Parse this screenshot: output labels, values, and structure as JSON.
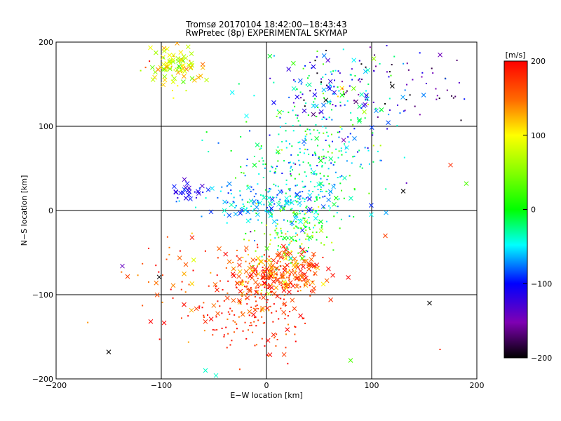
{
  "chart_data": {
    "type": "scatter",
    "title": "Tromsø 20170104 18:42:00−18:43:43",
    "subtitle": "RwPretec (8p) EXPERIMENTAL SKYMAP",
    "xlabel": "E−W location [km]",
    "ylabel": "N−S location [km]",
    "xlim": [
      -200,
      200
    ],
    "ylim": [
      -200,
      200
    ],
    "xticks": [
      -200,
      -100,
      0,
      100,
      200
    ],
    "yticks": [
      -200,
      -100,
      0,
      100,
      200
    ],
    "xtick_labels": [
      "−200",
      "−100",
      "0",
      "100",
      "200"
    ],
    "ytick_labels": [
      "−200",
      "−100",
      "0",
      "100",
      "200"
    ],
    "grid_lines": [
      -100,
      0,
      100
    ],
    "grid": true,
    "colorbar": {
      "title": "[m/s]",
      "min": -200,
      "max": 200,
      "ticks": [
        200,
        100,
        0,
        -100,
        -200
      ],
      "tick_labels": [
        "200",
        "100",
        "0",
        "−100",
        "−200"
      ],
      "colormap": "rainbow (black-purple-blue-cyan-green-yellow-orange-red)"
    },
    "markers": [
      "x",
      "dot"
    ],
    "clusters": [
      {
        "x": -85,
        "y": 172,
        "sx": 12,
        "sy": 12,
        "n": 90,
        "v": 90,
        "vs": 35,
        "cross": 0.7
      },
      {
        "x": 60,
        "y": 140,
        "sx": 30,
        "sy": 28,
        "n": 160,
        "v": -80,
        "vs": 70,
        "cross": 0.35
      },
      {
        "x": 130,
        "y": 150,
        "sx": 40,
        "sy": 30,
        "n": 70,
        "v": -150,
        "vs": 50,
        "cross": 0.05
      },
      {
        "x": 40,
        "y": 60,
        "sx": 35,
        "sy": 35,
        "n": 280,
        "v": -30,
        "vs": 40,
        "cross": 0.05
      },
      {
        "x": 10,
        "y": 10,
        "sx": 35,
        "sy": 12,
        "n": 160,
        "v": -60,
        "vs": 25,
        "cross": 0.35
      },
      {
        "x": -75,
        "y": 22,
        "sx": 8,
        "sy": 6,
        "n": 25,
        "v": -110,
        "vs": 20,
        "cross": 0.6
      },
      {
        "x": 25,
        "y": -25,
        "sx": 20,
        "sy": 20,
        "n": 150,
        "v": 20,
        "vs": 45,
        "cross": 0.1
      },
      {
        "x": 10,
        "y": -75,
        "sx": 22,
        "sy": 15,
        "n": 260,
        "v": 160,
        "vs": 35,
        "cross": 0.55
      },
      {
        "x": -20,
        "y": -115,
        "sx": 35,
        "sy": 22,
        "n": 160,
        "v": 180,
        "vs": 25,
        "cross": 0.25
      },
      {
        "x": -90,
        "y": -80,
        "sx": 25,
        "sy": 30,
        "n": 40,
        "v": 170,
        "vs": 40,
        "cross": 0.3
      },
      {
        "x": 0,
        "y": -150,
        "sx": 20,
        "sy": 20,
        "n": 30,
        "v": 180,
        "vs": 25,
        "cross": 0.2
      }
    ],
    "isolated_points": [
      {
        "x": -150,
        "y": -168,
        "v": -200,
        "m": "x"
      },
      {
        "x": -137,
        "y": -66,
        "v": -140,
        "m": "x"
      },
      {
        "x": -102,
        "y": -79,
        "v": -200,
        "m": "x"
      },
      {
        "x": 155,
        "y": -110,
        "v": -200,
        "m": "x"
      },
      {
        "x": 130,
        "y": 23,
        "v": -200,
        "m": "x"
      },
      {
        "x": 175,
        "y": 54,
        "v": 180,
        "m": "x"
      },
      {
        "x": 190,
        "y": 32,
        "v": 30,
        "m": "x"
      },
      {
        "x": 113,
        "y": -30,
        "v": 170,
        "m": "x"
      },
      {
        "x": 80,
        "y": -178,
        "v": 30,
        "m": "x"
      },
      {
        "x": -58,
        "y": -190,
        "v": -40,
        "m": "x"
      },
      {
        "x": -48,
        "y": -196,
        "v": -40,
        "m": "x"
      },
      {
        "x": 165,
        "y": -165,
        "v": 180,
        "m": "dot"
      },
      {
        "x": -112,
        "y": -45,
        "v": 180,
        "m": "dot"
      },
      {
        "x": -40,
        "y": 0,
        "v": -40,
        "m": "x"
      }
    ]
  }
}
